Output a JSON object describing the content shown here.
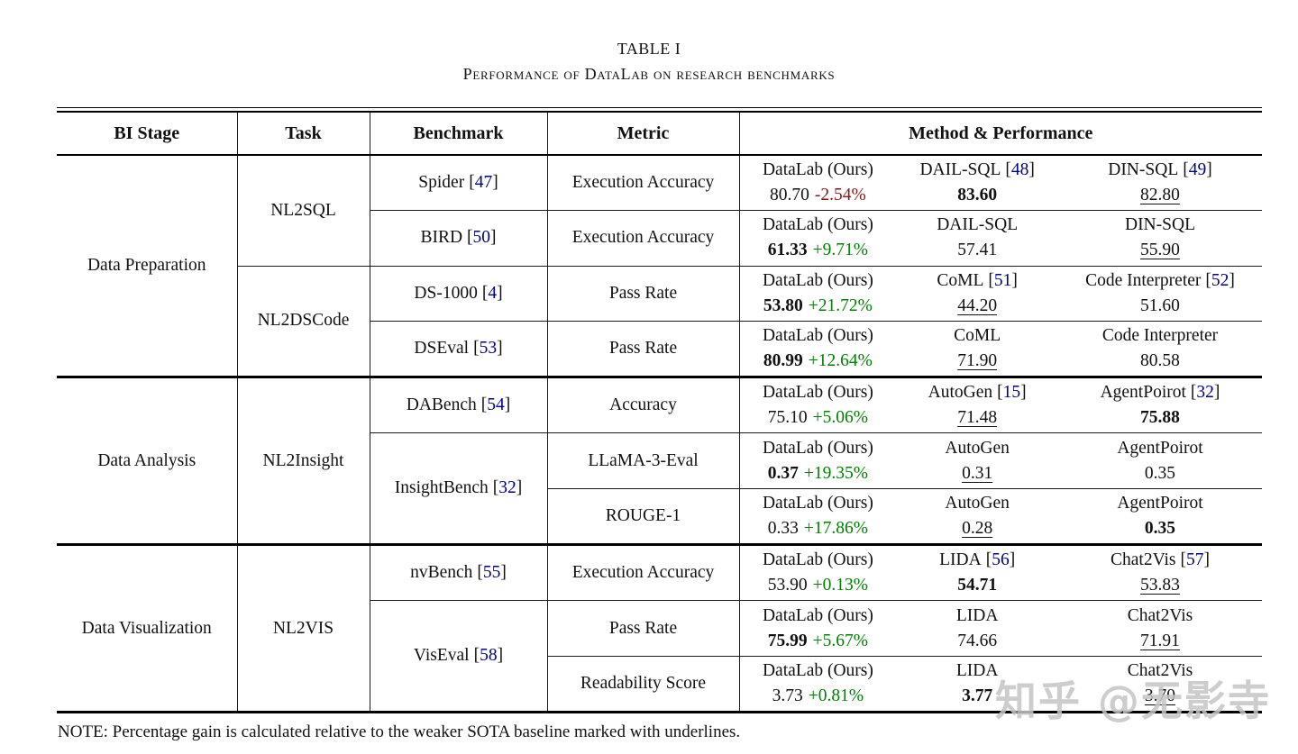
{
  "page": {
    "title": "TABLE I",
    "subtitle": "Performance of DataLab on research benchmarks",
    "note": "NOTE: Percentage gain is calculated relative to the weaker SOTA baseline marked with underlines.",
    "watermark": "知乎 @无影寺"
  },
  "colors": {
    "citation_link": "#00008B",
    "gain_positive": "#008000",
    "gain_negative": "#8B1515",
    "watermark_gray": "#C5C5C5"
  },
  "table": {
    "headers": {
      "stage": "BI Stage",
      "task": "Task",
      "benchmark": "Benchmark",
      "metric": "Metric",
      "method": "Method & Performance"
    },
    "rows": [
      {
        "stage": "Data Preparation",
        "task": "NL2SQL",
        "bench": "Spider",
        "bench_cite": "47",
        "metric": "Execution Accuracy",
        "methods": [
          {
            "name": "DataLab (Ours)",
            "value": "80.70",
            "style": "plain",
            "gain": "-2.54%",
            "gdir": "neg"
          },
          {
            "name": "DAIL-SQL",
            "cite": "48",
            "value": "83.60",
            "style": "bold"
          },
          {
            "name": "DIN-SQL",
            "cite": "49",
            "value": "82.80",
            "style": "underline"
          }
        ]
      },
      {
        "bench": "BIRD",
        "bench_cite": "50",
        "metric": "Execution Accuracy",
        "methods": [
          {
            "name": "DataLab (Ours)",
            "value": "61.33",
            "style": "bold",
            "gain": "+9.71%",
            "gdir": "pos"
          },
          {
            "name": "DAIL-SQL",
            "value": "57.41",
            "style": "plain"
          },
          {
            "name": "DIN-SQL",
            "value": "55.90",
            "style": "underline"
          }
        ]
      },
      {
        "task": "NL2DSCode",
        "bench": "DS-1000",
        "bench_cite": "4",
        "metric": "Pass Rate",
        "methods": [
          {
            "name": "DataLab (Ours)",
            "value": "53.80",
            "style": "bold",
            "gain": "+21.72%",
            "gdir": "pos"
          },
          {
            "name": "CoML",
            "cite": "51",
            "value": "44.20",
            "style": "underline"
          },
          {
            "name": "Code Interpreter",
            "cite": "52",
            "value": "51.60",
            "style": "plain"
          }
        ]
      },
      {
        "bench": "DSEval",
        "bench_cite": "53",
        "metric": "Pass Rate",
        "methods": [
          {
            "name": "DataLab (Ours)",
            "value": "80.99",
            "style": "bold",
            "gain": "+12.64%",
            "gdir": "pos"
          },
          {
            "name": "CoML",
            "value": "71.90",
            "style": "underline"
          },
          {
            "name": "Code Interpreter",
            "value": "80.58",
            "style": "plain"
          }
        ]
      },
      {
        "stage": "Data Analysis",
        "task": "NL2Insight",
        "bench": "DABench",
        "bench_cite": "54",
        "metric": "Accuracy",
        "methods": [
          {
            "name": "DataLab (Ours)",
            "value": "75.10",
            "style": "plain",
            "gain": "+5.06%",
            "gdir": "pos"
          },
          {
            "name": "AutoGen",
            "cite": "15",
            "value": "71.48",
            "style": "underline"
          },
          {
            "name": "AgentPoirot",
            "cite": "32",
            "value": "75.88",
            "style": "bold"
          }
        ]
      },
      {
        "bench": "InsightBench",
        "bench_cite": "32",
        "metric": "LLaMA-3-Eval",
        "methods": [
          {
            "name": "DataLab (Ours)",
            "value": "0.37",
            "style": "bold",
            "gain": "+19.35%",
            "gdir": "pos"
          },
          {
            "name": "AutoGen",
            "value": "0.31",
            "style": "underline"
          },
          {
            "name": "AgentPoirot",
            "value": "0.35",
            "style": "plain"
          }
        ]
      },
      {
        "metric": "ROUGE-1",
        "methods": [
          {
            "name": "DataLab (Ours)",
            "value": "0.33",
            "style": "plain",
            "gain": "+17.86%",
            "gdir": "pos"
          },
          {
            "name": "AutoGen",
            "value": "0.28",
            "style": "underline"
          },
          {
            "name": "AgentPoirot",
            "value": "0.35",
            "style": "bold"
          }
        ]
      },
      {
        "stage": "Data Visualization",
        "task": "NL2VIS",
        "bench": "nvBench",
        "bench_cite": "55",
        "metric": "Execution Accuracy",
        "methods": [
          {
            "name": "DataLab (Ours)",
            "value": "53.90",
            "style": "plain",
            "gain": "+0.13%",
            "gdir": "pos"
          },
          {
            "name": "LIDA",
            "cite": "56",
            "value": "54.71",
            "style": "bold"
          },
          {
            "name": "Chat2Vis",
            "cite": "57",
            "value": "53.83",
            "style": "underline"
          }
        ]
      },
      {
        "bench": "VisEval",
        "bench_cite": "58",
        "metric": "Pass Rate",
        "methods": [
          {
            "name": "DataLab (Ours)",
            "value": "75.99",
            "style": "bold",
            "gain": "+5.67%",
            "gdir": "pos"
          },
          {
            "name": "LIDA",
            "value": "74.66",
            "style": "plain"
          },
          {
            "name": "Chat2Vis",
            "value": "71.91",
            "style": "underline"
          }
        ]
      },
      {
        "metric": "Readability Score",
        "methods": [
          {
            "name": "DataLab (Ours)",
            "value": "3.73",
            "style": "plain",
            "gain": "+0.81%",
            "gdir": "pos"
          },
          {
            "name": "LIDA",
            "value": "3.77",
            "style": "bold"
          },
          {
            "name": "Chat2Vis",
            "value": "3.70",
            "style": "underline"
          }
        ]
      }
    ]
  }
}
